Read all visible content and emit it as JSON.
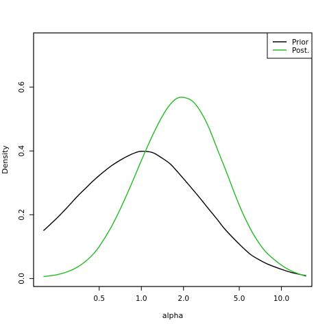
{
  "chart_data": {
    "type": "line",
    "xscale": "log",
    "xlim": [
      0.17,
      16.5
    ],
    "ylim": [
      -0.025,
      0.77
    ],
    "xlabel": "alpha",
    "ylabel": "Density",
    "xticks": [
      0.5,
      1.0,
      2.0,
      5.0,
      10.0
    ],
    "xtick_labels": [
      "0.5",
      "1.0",
      "2.0",
      "5.0",
      "10.0"
    ],
    "yticks": [
      0.0,
      0.2,
      0.4,
      0.6
    ],
    "ytick_labels": [
      "0.0",
      "0.2",
      "0.4",
      "0.6"
    ],
    "grid": false,
    "legend_position": "top-right",
    "series": [
      {
        "name": "Prior",
        "color": "#000000",
        "x": [
          0.2,
          0.25,
          0.3,
          0.35,
          0.4,
          0.45,
          0.5,
          0.6,
          0.7,
          0.8,
          0.9,
          1.0,
          1.2,
          1.4,
          1.6,
          1.8,
          2.0,
          2.5,
          3.0,
          3.5,
          4.0,
          5.0,
          6.0,
          7.0,
          8.0,
          10.0,
          12.0,
          15.0
        ],
        "y": [
          0.15,
          0.19,
          0.226,
          0.258,
          0.283,
          0.305,
          0.323,
          0.351,
          0.37,
          0.384,
          0.394,
          0.399,
          0.395,
          0.378,
          0.36,
          0.336,
          0.313,
          0.263,
          0.22,
          0.184,
          0.152,
          0.108,
          0.076,
          0.058,
          0.045,
          0.029,
          0.018,
          0.009
        ]
      },
      {
        "name": "Post.",
        "color": "#22bb22",
        "x": [
          0.2,
          0.25,
          0.3,
          0.35,
          0.4,
          0.45,
          0.5,
          0.6,
          0.7,
          0.8,
          0.9,
          1.0,
          1.2,
          1.4,
          1.6,
          1.8,
          2.0,
          2.3,
          2.6,
          3.0,
          3.5,
          4.0,
          5.0,
          6.0,
          7.0,
          8.0,
          10.0,
          12.0,
          15.0
        ],
        "y": [
          0.006,
          0.012,
          0.022,
          0.036,
          0.054,
          0.075,
          0.1,
          0.156,
          0.214,
          0.27,
          0.322,
          0.37,
          0.448,
          0.506,
          0.545,
          0.565,
          0.568,
          0.557,
          0.529,
          0.478,
          0.404,
          0.34,
          0.23,
          0.156,
          0.108,
          0.077,
          0.042,
          0.022,
          0.007
        ]
      }
    ]
  }
}
